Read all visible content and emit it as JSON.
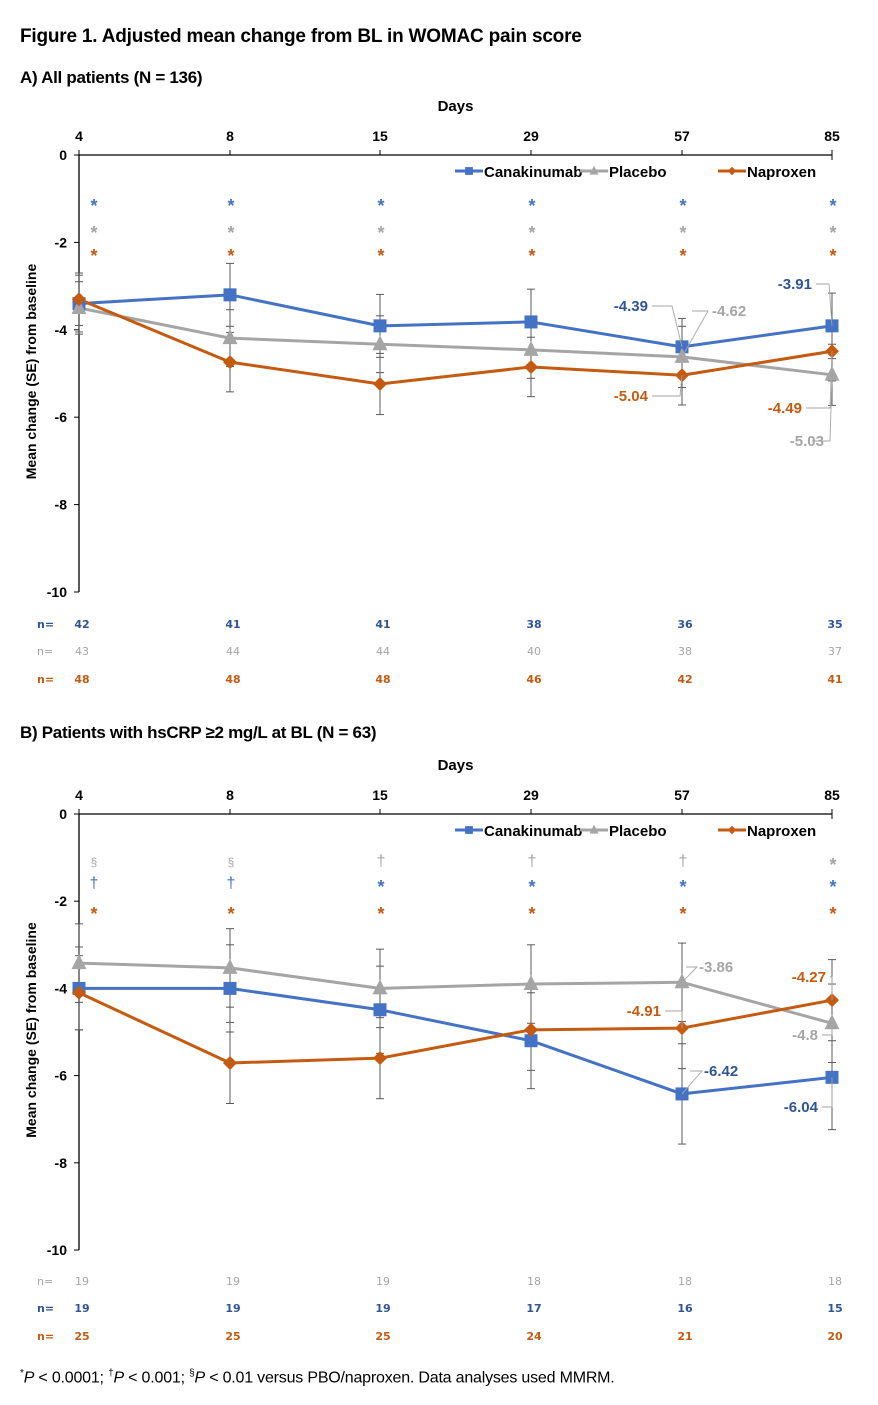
{
  "figure": {
    "title": "Figure 1. Adjusted mean change from BL in WOMAC pain score",
    "footnote": {
      "parts": [
        {
          "sup": "*",
          "italic": "P",
          "text": " < 0.0001; "
        },
        {
          "sup": "†",
          "italic": "P",
          "text": " < 0.001; "
        },
        {
          "sup": "§",
          "italic": "P",
          "text": " < 0.01 versus PBO/naproxen. Data analyses used MMRM."
        }
      ]
    }
  },
  "colors": {
    "canakinumab": "#4472C4",
    "placebo": "#A5A5A5",
    "naproxen": "#C55A11",
    "canakinumab_text": "#2F5597",
    "placebo_text": "#A5A5A5",
    "naproxen_text": "#C55A11",
    "errorbar": "#595959"
  },
  "chart_data": [
    {
      "type": "line",
      "panel_title": "A) All patients (N = 136)",
      "title": "A) All patients (N = 136)",
      "xlabel": "Days",
      "ylabel": "Mean change (SE) from baseline",
      "categories": [
        "4",
        "8",
        "15",
        "29",
        "57",
        "85"
      ],
      "ylim": [
        -10,
        0
      ],
      "yticks": [
        "0",
        "-2",
        "-4",
        "-6",
        "-8",
        "-10"
      ],
      "ytick_values": [
        0,
        -2,
        -4,
        -6,
        -8,
        -10
      ],
      "grid": false,
      "legend": {
        "position": "top-right",
        "entries": [
          "Canakinumab",
          "Placebo",
          "Naproxen"
        ]
      },
      "series": [
        {
          "name": "Canakinumab",
          "key": "canakinumab",
          "marker": "square",
          "values": [
            -3.4,
            -3.2,
            -3.91,
            -3.82,
            -4.39,
            -3.91
          ],
          "se": [
            0.65,
            0.72,
            0.72,
            0.75,
            0.65,
            0.75
          ],
          "labels": [
            null,
            null,
            null,
            null,
            "-4.39",
            "-3.91"
          ],
          "n": [
            "42",
            "41",
            "41",
            "38",
            "36",
            "35"
          ]
        },
        {
          "name": "Placebo",
          "key": "placebo",
          "marker": "triangle",
          "values": [
            -3.5,
            -4.19,
            -4.33,
            -4.46,
            -4.62,
            -5.03
          ],
          "se": [
            0.6,
            0.65,
            0.65,
            0.65,
            0.7,
            0.7
          ],
          "labels": [
            null,
            null,
            null,
            null,
            "-4.62",
            "-5.03"
          ],
          "n": [
            "43",
            "44",
            "44",
            "40",
            "38",
            "37"
          ]
        },
        {
          "name": "Naproxen",
          "key": "naproxen",
          "marker": "diamond",
          "values": [
            -3.3,
            -4.74,
            -5.24,
            -4.85,
            -5.04,
            -4.49
          ],
          "se": [
            0.6,
            0.68,
            0.7,
            0.68,
            0.68,
            0.68
          ],
          "labels": [
            null,
            null,
            null,
            null,
            "-5.04",
            "-4.49"
          ],
          "n": [
            "48",
            "48",
            "48",
            "46",
            "42",
            "41"
          ]
        }
      ],
      "significance_rows": [
        {
          "key": "canakinumab",
          "symbols": [
            "*",
            "*",
            "*",
            "*",
            "*",
            "*"
          ]
        },
        {
          "key": "placebo",
          "symbols": [
            "*",
            "*",
            "*",
            "*",
            "*",
            "*"
          ]
        },
        {
          "key": "naproxen",
          "symbols": [
            "*",
            "*",
            "*",
            "*",
            "*",
            "*"
          ]
        }
      ],
      "n_rows_order": [
        "canakinumab",
        "placebo",
        "naproxen"
      ],
      "n_prefix": "n="
    },
    {
      "type": "line",
      "panel_title": "B) Patients with hsCRP ≥2 mg/L at BL (N = 63)",
      "title": "B) Patients with hsCRP ≥2 mg/L at BL (N = 63)",
      "xlabel": "Days",
      "ylabel": "Mean change (SE) from baseline",
      "categories": [
        "4",
        "8",
        "15",
        "29",
        "57",
        "85"
      ],
      "ylim": [
        -10,
        0
      ],
      "yticks": [
        "0",
        "-2",
        "-4",
        "-6",
        "-8",
        "-10"
      ],
      "ytick_values": [
        0,
        -2,
        -4,
        -6,
        -8,
        -10
      ],
      "grid": false,
      "legend": {
        "position": "top-right",
        "entries": [
          "Canakinumab",
          "Placebo",
          "Naproxen"
        ]
      },
      "series": [
        {
          "name": "Canakinumab",
          "key": "canakinumab",
          "marker": "square",
          "values": [
            -4.0,
            -4.0,
            -4.49,
            -5.2,
            -6.42,
            -6.04
          ],
          "se": [
            0.95,
            1.0,
            1.0,
            1.1,
            1.15,
            1.2
          ],
          "labels": [
            null,
            null,
            null,
            null,
            "-6.42",
            "-6.04"
          ],
          "n": [
            "19",
            "19",
            "19",
            "17",
            "16",
            "15"
          ]
        },
        {
          "name": "Placebo",
          "key": "placebo",
          "marker": "triangle",
          "values": [
            -3.42,
            -3.53,
            -4.0,
            -3.9,
            -3.86,
            -4.8
          ],
          "se": [
            0.9,
            0.9,
            0.9,
            0.9,
            0.9,
            0.9
          ],
          "labels": [
            null,
            null,
            null,
            null,
            "-3.86",
            "-4.8"
          ],
          "n": [
            "19",
            "19",
            "19",
            "18",
            "18",
            "18"
          ]
        },
        {
          "name": "Naproxen",
          "key": "naproxen",
          "marker": "diamond",
          "values": [
            -4.1,
            -5.71,
            -5.6,
            -4.95,
            -4.91,
            -4.27
          ],
          "se": [
            0.85,
            0.93,
            0.93,
            0.93,
            0.93,
            0.93
          ],
          "labels": [
            null,
            null,
            null,
            null,
            "-4.91",
            "-4.27"
          ],
          "n": [
            "25",
            "25",
            "25",
            "24",
            "21",
            "20"
          ]
        }
      ],
      "significance_rows": [
        {
          "key": "placebo",
          "symbols": [
            "§",
            "§",
            "†",
            "†",
            "†",
            "*"
          ]
        },
        {
          "key": "canakinumab",
          "symbols": [
            "†",
            "†",
            "*",
            "*",
            "*",
            "*"
          ]
        },
        {
          "key": "naproxen",
          "symbols": [
            "*",
            "*",
            "*",
            "*",
            "*",
            "*"
          ]
        }
      ],
      "n_rows_order": [
        "placebo",
        "canakinumab",
        "naproxen"
      ],
      "n_prefix": "n="
    }
  ]
}
